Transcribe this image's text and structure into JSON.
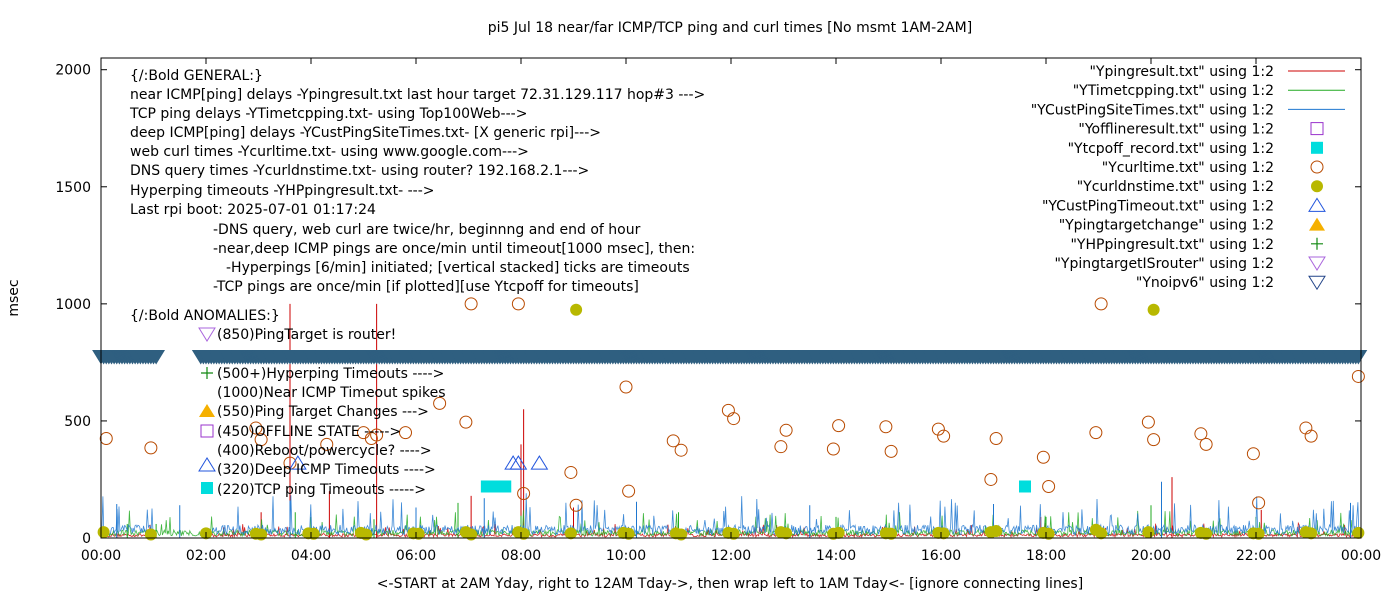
{
  "chart_data": {
    "type": "line",
    "title": "pi5 Jul 18  near/far ICMP/TCP ping and curl times [No msmt 1AM-2AM]",
    "xlabel": "<-START at 2AM Yday, right to 12AM Tday->, then wrap left to 1AM Tday<- [ignore connecting lines]",
    "ylabel": "msec",
    "xlim": [
      0,
      24
    ],
    "ylim": [
      0,
      2050
    ],
    "x_tick_labels": [
      "00:00",
      "02:00",
      "04:00",
      "06:00",
      "08:00",
      "10:00",
      "12:00",
      "14:00",
      "16:00",
      "18:00",
      "20:00",
      "22:00",
      "00:00"
    ],
    "y_ticks": [
      0,
      500,
      1000,
      1500,
      2000
    ],
    "grid": false,
    "legend_position": "top-right",
    "legend": [
      {
        "label": "\"Ypingresult.txt\" using 1:2",
        "kind": "line",
        "color": "#cc0000"
      },
      {
        "label": "\"YTimetcpping.txt\" using 1:2",
        "kind": "line",
        "color": "#22aa22"
      },
      {
        "label": "\"YCustPingSiteTimes.txt\" using 1:2",
        "kind": "line",
        "color": "#1f77d0"
      },
      {
        "label": "\"Yofflineresult.txt\" using 1:2",
        "kind": "open-square",
        "color": "#9933cc"
      },
      {
        "label": "\"Ytcpoff_record.txt\" using 1:2",
        "kind": "filled-square",
        "color": "#00dddd"
      },
      {
        "label": "\"Ycurltime.txt\" using 1:2",
        "kind": "open-circle",
        "color": "#b84a00"
      },
      {
        "label": "\"Ycurldnstime.txt\" using 1:2",
        "kind": "filled-circle",
        "color": "#b8b800"
      },
      {
        "label": "\"YCustPingTimeout.txt\" using 1:2",
        "kind": "open-triangle-up",
        "color": "#2255dd"
      },
      {
        "label": "\"Ypingtargetchange\" using 1:2",
        "kind": "filled-triangle-up",
        "color": "#f5b000"
      },
      {
        "label": "\"YHPpingresult.txt\" using 1:2",
        "kind": "plus",
        "color": "#118811"
      },
      {
        "label": "\"YpingtargetISrouter\" using 1:2",
        "kind": "open-triangle-down",
        "color": "#aa66dd"
      },
      {
        "label": "\"Ynoipv6\" using 1:2",
        "kind": "open-triangle-down",
        "color": "#224488"
      }
    ],
    "annotations": [
      "{/:Bold GENERAL:}",
      "near ICMP[ping] delays -Ypingresult.txt last hour target 72.31.129.117 hop#3 --->",
      "TCP ping delays -YTimetcpping.txt- using Top100Web--->",
      "deep ICMP[ping] delays -YCustPingSiteTimes.txt- [X generic rpi]--->",
      "web curl times -Ycurltime.txt- using www.google.com--->",
      "DNS query times -Ycurldnstime.txt- using router? 192.168.2.1--->",
      "Hyperping timeouts -YHPpingresult.txt- --->",
      "Last rpi boot: 2025-07-01 01:17:24",
      "-DNS query, web curl are twice/hr, beginnng and end of hour",
      "-near,deep ICMP pings are once/min until timeout[1000 msec], then:",
      "-Hyperpings [6/min] initiated; [vertical stacked] ticks are timeouts",
      "-TCP pings are once/min [if plotted][use Ytcpoff for timeouts]",
      "{/:Bold ANOMALIES:}",
      "(850)PingTarget is router!",
      "(500+)Hyperping Timeouts ---->",
      "(1000)Near ICMP Timeout spikes",
      "(550)Ping Target Changes --->",
      "(450)OFFLINE STATE ----->",
      "(400)Reboot/powercycle? ---->",
      "(320)Deep ICMP Timeouts ---->",
      "(220)TCP ping Timeouts ----->"
    ],
    "noipv6_band_y": 775,
    "noipv6_band_gaps": [
      [
        1.1,
        1.9
      ]
    ],
    "series": [
      {
        "name": "\"Ypingresult.txt\" using 1:2",
        "baseline": 12,
        "spikes": [
          [
            3.05,
            110
          ],
          [
            3.6,
            1000
          ],
          [
            4.35,
            200
          ],
          [
            5.25,
            1000
          ],
          [
            7.05,
            180
          ],
          [
            8.0,
            400
          ],
          [
            8.05,
            550
          ],
          [
            9.0,
            130
          ],
          [
            17.9,
            90
          ],
          [
            20.4,
            260
          ],
          [
            22.1,
            120
          ]
        ]
      },
      {
        "name": "\"YTimetcpping.txt\" using 1:2",
        "baseline": 22,
        "spikes": [
          [
            0.5,
            60
          ],
          [
            1.05,
            60
          ],
          [
            2.0,
            20
          ],
          [
            3.7,
            110
          ],
          [
            4.0,
            90
          ],
          [
            5.2,
            80
          ],
          [
            6.8,
            150
          ],
          [
            8.0,
            95
          ],
          [
            11.0,
            110
          ],
          [
            14.0,
            90
          ],
          [
            18.0,
            90
          ],
          [
            20.0,
            140
          ],
          [
            22.0,
            90
          ]
        ]
      },
      {
        "name": "\"YCustPingSiteTimes.txt\" using 1:2",
        "baseline": 35,
        "spikes": [
          [
            0.3,
            145
          ],
          [
            1.5,
            140
          ],
          [
            3.6,
            160
          ],
          [
            6.0,
            130
          ],
          [
            7.3,
            170
          ],
          [
            10.2,
            155
          ],
          [
            13.5,
            140
          ],
          [
            17.0,
            145
          ],
          [
            20.2,
            240
          ],
          [
            23.8,
            150
          ]
        ]
      }
    ],
    "markers": {
      "curltime": [
        [
          0.1,
          425
        ],
        [
          0.95,
          385
        ],
        [
          2.95,
          470
        ],
        [
          3.05,
          420
        ],
        [
          3.6,
          320
        ],
        [
          4.3,
          400
        ],
        [
          5.0,
          450
        ],
        [
          5.15,
          425
        ],
        [
          5.25,
          440
        ],
        [
          5.8,
          450
        ],
        [
          6.45,
          575
        ],
        [
          6.95,
          495
        ],
        [
          7.05,
          1000
        ],
        [
          7.95,
          1000
        ],
        [
          8.05,
          190
        ],
        [
          8.95,
          280
        ],
        [
          9.05,
          140
        ],
        [
          10.0,
          645
        ],
        [
          10.05,
          200
        ],
        [
          10.9,
          415
        ],
        [
          11.05,
          375
        ],
        [
          11.95,
          545
        ],
        [
          12.05,
          510
        ],
        [
          12.95,
          390
        ],
        [
          13.05,
          460
        ],
        [
          13.95,
          380
        ],
        [
          14.05,
          480
        ],
        [
          14.95,
          475
        ],
        [
          15.05,
          370
        ],
        [
          15.95,
          465
        ],
        [
          16.05,
          435
        ],
        [
          16.95,
          250
        ],
        [
          17.05,
          425
        ],
        [
          17.95,
          345
        ],
        [
          18.05,
          220
        ],
        [
          18.95,
          450
        ],
        [
          19.05,
          1000
        ],
        [
          19.95,
          495
        ],
        [
          20.05,
          420
        ],
        [
          20.95,
          445
        ],
        [
          21.05,
          400
        ],
        [
          21.95,
          360
        ],
        [
          22.05,
          150
        ],
        [
          22.95,
          470
        ],
        [
          23.05,
          435
        ],
        [
          23.95,
          690
        ]
      ],
      "curldnstime": [
        [
          0.05,
          25
        ],
        [
          0.95,
          15
        ],
        [
          2.0,
          20
        ],
        [
          2.95,
          18
        ],
        [
          3.05,
          15
        ],
        [
          3.95,
          20
        ],
        [
          4.05,
          18
        ],
        [
          4.95,
          22
        ],
        [
          5.05,
          15
        ],
        [
          5.95,
          20
        ],
        [
          6.05,
          18
        ],
        [
          6.95,
          25
        ],
        [
          7.05,
          15
        ],
        [
          7.95,
          25
        ],
        [
          8.05,
          18
        ],
        [
          8.95,
          20
        ],
        [
          9.05,
          975
        ],
        [
          9.95,
          22
        ],
        [
          10.05,
          18
        ],
        [
          10.95,
          20
        ],
        [
          11.05,
          15
        ],
        [
          11.95,
          22
        ],
        [
          12.05,
          18
        ],
        [
          12.95,
          25
        ],
        [
          13.05,
          20
        ],
        [
          13.95,
          18
        ],
        [
          14.05,
          22
        ],
        [
          14.95,
          20
        ],
        [
          15.05,
          18
        ],
        [
          15.95,
          22
        ],
        [
          16.05,
          20
        ],
        [
          16.95,
          25
        ],
        [
          17.05,
          30
        ],
        [
          17.95,
          22
        ],
        [
          18.05,
          18
        ],
        [
          18.95,
          35
        ],
        [
          19.05,
          20
        ],
        [
          19.95,
          25
        ],
        [
          20.05,
          975
        ],
        [
          20.95,
          22
        ],
        [
          21.05,
          18
        ],
        [
          21.95,
          20
        ],
        [
          22.05,
          18
        ],
        [
          22.95,
          25
        ],
        [
          23.05,
          20
        ],
        [
          23.95,
          22
        ]
      ],
      "custping_timeout": [
        [
          3.75,
          320
        ],
        [
          7.85,
          320
        ],
        [
          7.95,
          320
        ],
        [
          8.35,
          320
        ]
      ],
      "tcpoff": [
        [
          7.35,
          220
        ],
        [
          7.55,
          220
        ],
        [
          7.7,
          220
        ],
        [
          17.6,
          220
        ]
      ]
    }
  }
}
